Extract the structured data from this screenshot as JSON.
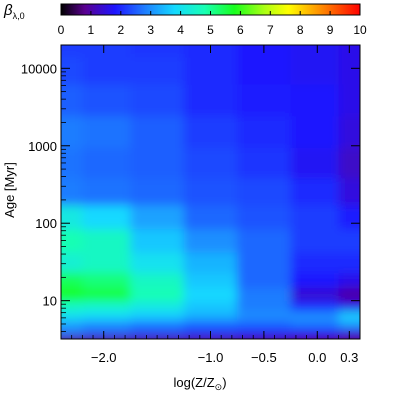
{
  "chart_data": {
    "type": "heatmap",
    "colorbar": {
      "label": "β",
      "label_sub": "λ,0",
      "ticks": [
        "0",
        "1",
        "2",
        "3",
        "4",
        "5",
        "6",
        "7",
        "8",
        "9",
        "10"
      ],
      "range": [
        0,
        10
      ],
      "colormap": "rainbow (black-purple-blue-cyan-green-yellow-red)"
    },
    "xlabel": "log(Z/Z",
    "xlabel_symbol": "⊙",
    "xlabel_close": ")",
    "ylabel": "Age [Myr]",
    "xlim": [
      -2.4,
      0.4
    ],
    "x_scale": "linear",
    "y_scale": "log",
    "ylim": [
      3.2,
      20000
    ],
    "x_ticks": [
      {
        "value": -2.0,
        "label": "−2.0"
      },
      {
        "value": -1.0,
        "label": "−1.0"
      },
      {
        "value": -0.5,
        "label": "−0.5"
      },
      {
        "value": 0.0,
        "label": "0.0"
      },
      {
        "value": 0.3,
        "label": "0.3"
      }
    ],
    "y_ticks": [
      {
        "value": 10,
        "label": "10"
      },
      {
        "value": 100,
        "label": "100"
      },
      {
        "value": 1000,
        "label": "1000"
      },
      {
        "value": 10000,
        "label": "10000"
      }
    ],
    "x_grid": [
      -2.4,
      -2.0,
      -1.5,
      -1.0,
      -0.5,
      0.0,
      0.4
    ],
    "y_grid": [
      3.2,
      4,
      5,
      6.5,
      8.5,
      12,
      18,
      30,
      60,
      120,
      250,
      600,
      1500,
      4000,
      10000,
      20000
    ],
    "z": [
      [
        1.0,
        1.0,
        1.0,
        1.0,
        1.0,
        0.9,
        0.8
      ],
      [
        2.8,
        2.6,
        2.4,
        2.2,
        2.0,
        1.8,
        1.6
      ],
      [
        3.2,
        3.0,
        2.8,
        2.6,
        2.6,
        2.8,
        3.2
      ],
      [
        4.0,
        3.9,
        3.7,
        3.4,
        3.0,
        3.0,
        3.7
      ],
      [
        4.6,
        4.5,
        4.2,
        3.6,
        2.8,
        2.0,
        1.6
      ],
      [
        5.8,
        5.6,
        4.8,
        3.8,
        2.8,
        1.4,
        1.0
      ],
      [
        5.4,
        5.2,
        4.6,
        3.6,
        2.6,
        1.8,
        1.6
      ],
      [
        4.4,
        4.6,
        4.0,
        3.4,
        2.6,
        2.0,
        2.0
      ],
      [
        4.8,
        4.6,
        3.6,
        3.0,
        2.6,
        2.2,
        2.2
      ],
      [
        4.2,
        3.8,
        3.2,
        2.6,
        2.4,
        2.2,
        1.9
      ],
      [
        2.8,
        2.7,
        2.6,
        2.4,
        2.3,
        2.0,
        1.5
      ],
      [
        2.7,
        2.6,
        2.5,
        2.3,
        2.1,
        1.7,
        1.3
      ],
      [
        2.8,
        2.7,
        2.5,
        2.2,
        2.0,
        1.8,
        1.5
      ],
      [
        2.5,
        2.4,
        2.3,
        2.0,
        1.9,
        1.8,
        1.6
      ],
      [
        2.3,
        2.2,
        2.2,
        2.0,
        1.8,
        1.7,
        1.6
      ],
      [
        2.2,
        2.2,
        2.1,
        2.0,
        1.8,
        1.7,
        1.6
      ]
    ]
  }
}
